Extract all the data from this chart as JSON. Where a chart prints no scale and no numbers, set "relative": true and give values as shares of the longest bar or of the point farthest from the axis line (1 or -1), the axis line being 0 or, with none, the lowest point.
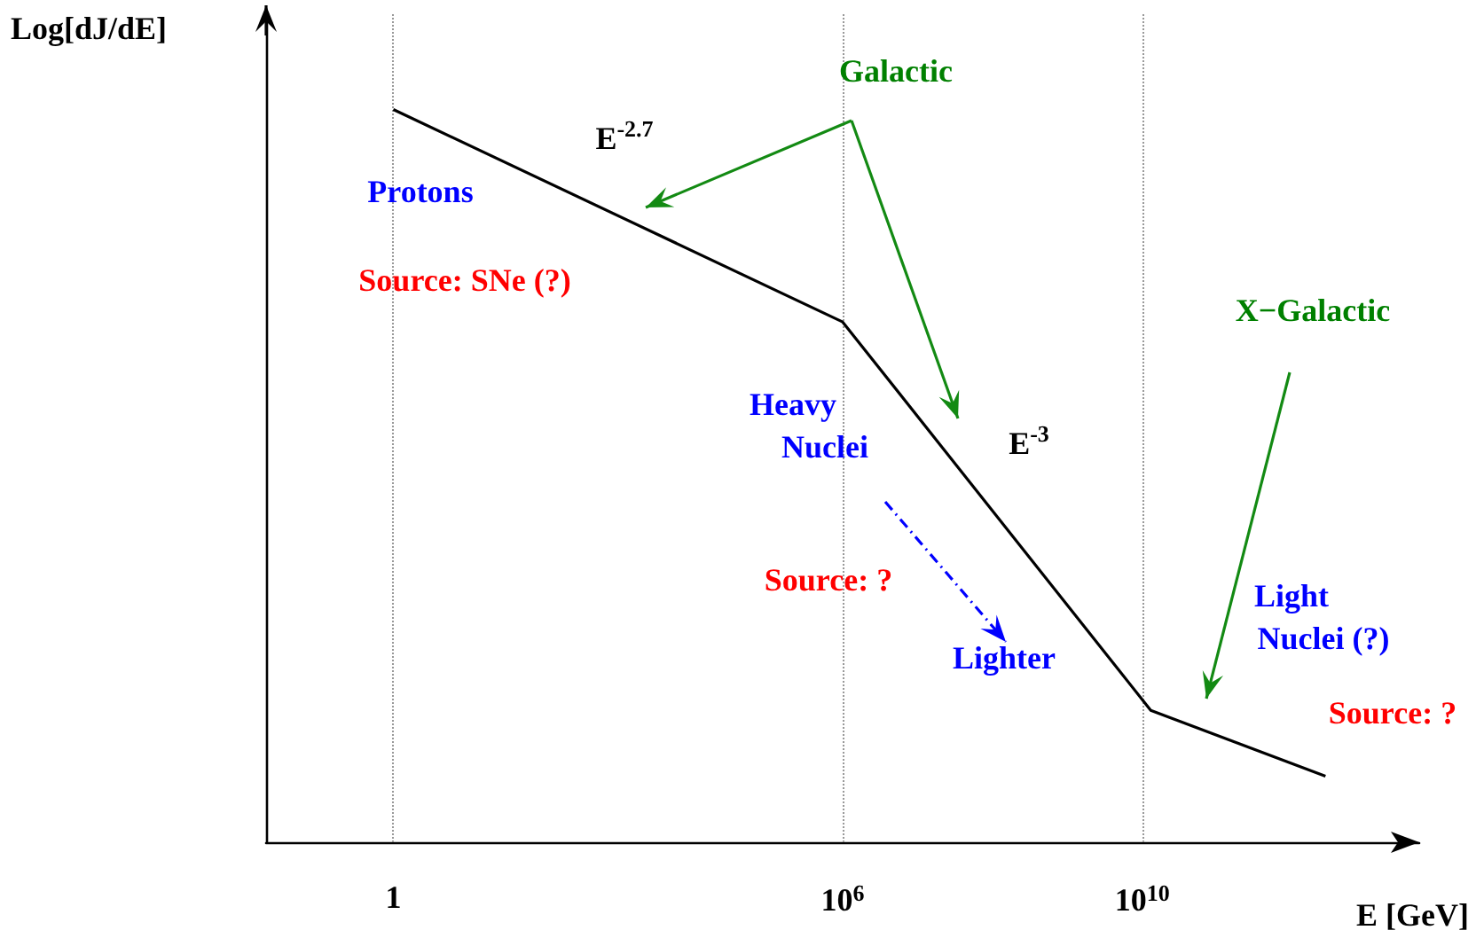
{
  "chart_data": {
    "type": "line",
    "relative": true,
    "xlabel": "E [GeV]",
    "ylabel": "Log[dJ/dE]",
    "log": "x",
    "marker": "none",
    "xlim": [
      0.02,
      50000000000000
    ],
    "xticks": [
      {
        "value": 1,
        "label": "1"
      },
      {
        "value": 1000000,
        "label": "10$^{6}$"
      },
      {
        "value": 10000000000,
        "label": "10$^{10}$"
      }
    ],
    "series": [
      {
        "color": "#000000",
        "x": [
          1,
          1000000,
          13000000000,
          2800000000000
        ],
        "values": [
          1,
          0.71,
          0.18,
          0.09
        ]
      }
    ],
    "ref_lines": [
      {
        "axis": "x",
        "value": 1,
        "label": null,
        "color": "#999999",
        "line_style": "dotted"
      },
      {
        "axis": "x",
        "value": 1000000,
        "label": null,
        "color": "#999999",
        "line_style": "dotted"
      },
      {
        "axis": "x",
        "value": 10000000000,
        "label": null,
        "color": "#999999",
        "line_style": "dotted"
      }
    ],
    "annotations": [
      "Protons",
      "Source: SNe (?)",
      "E$^{-2.7}$",
      "Galactic",
      "Heavy Nuclei",
      "E$^{-3}$",
      "Source: ?",
      "Lighter",
      "X−Galactic",
      "Light Nuclei (?)",
      "Source: ?"
    ]
  }
}
